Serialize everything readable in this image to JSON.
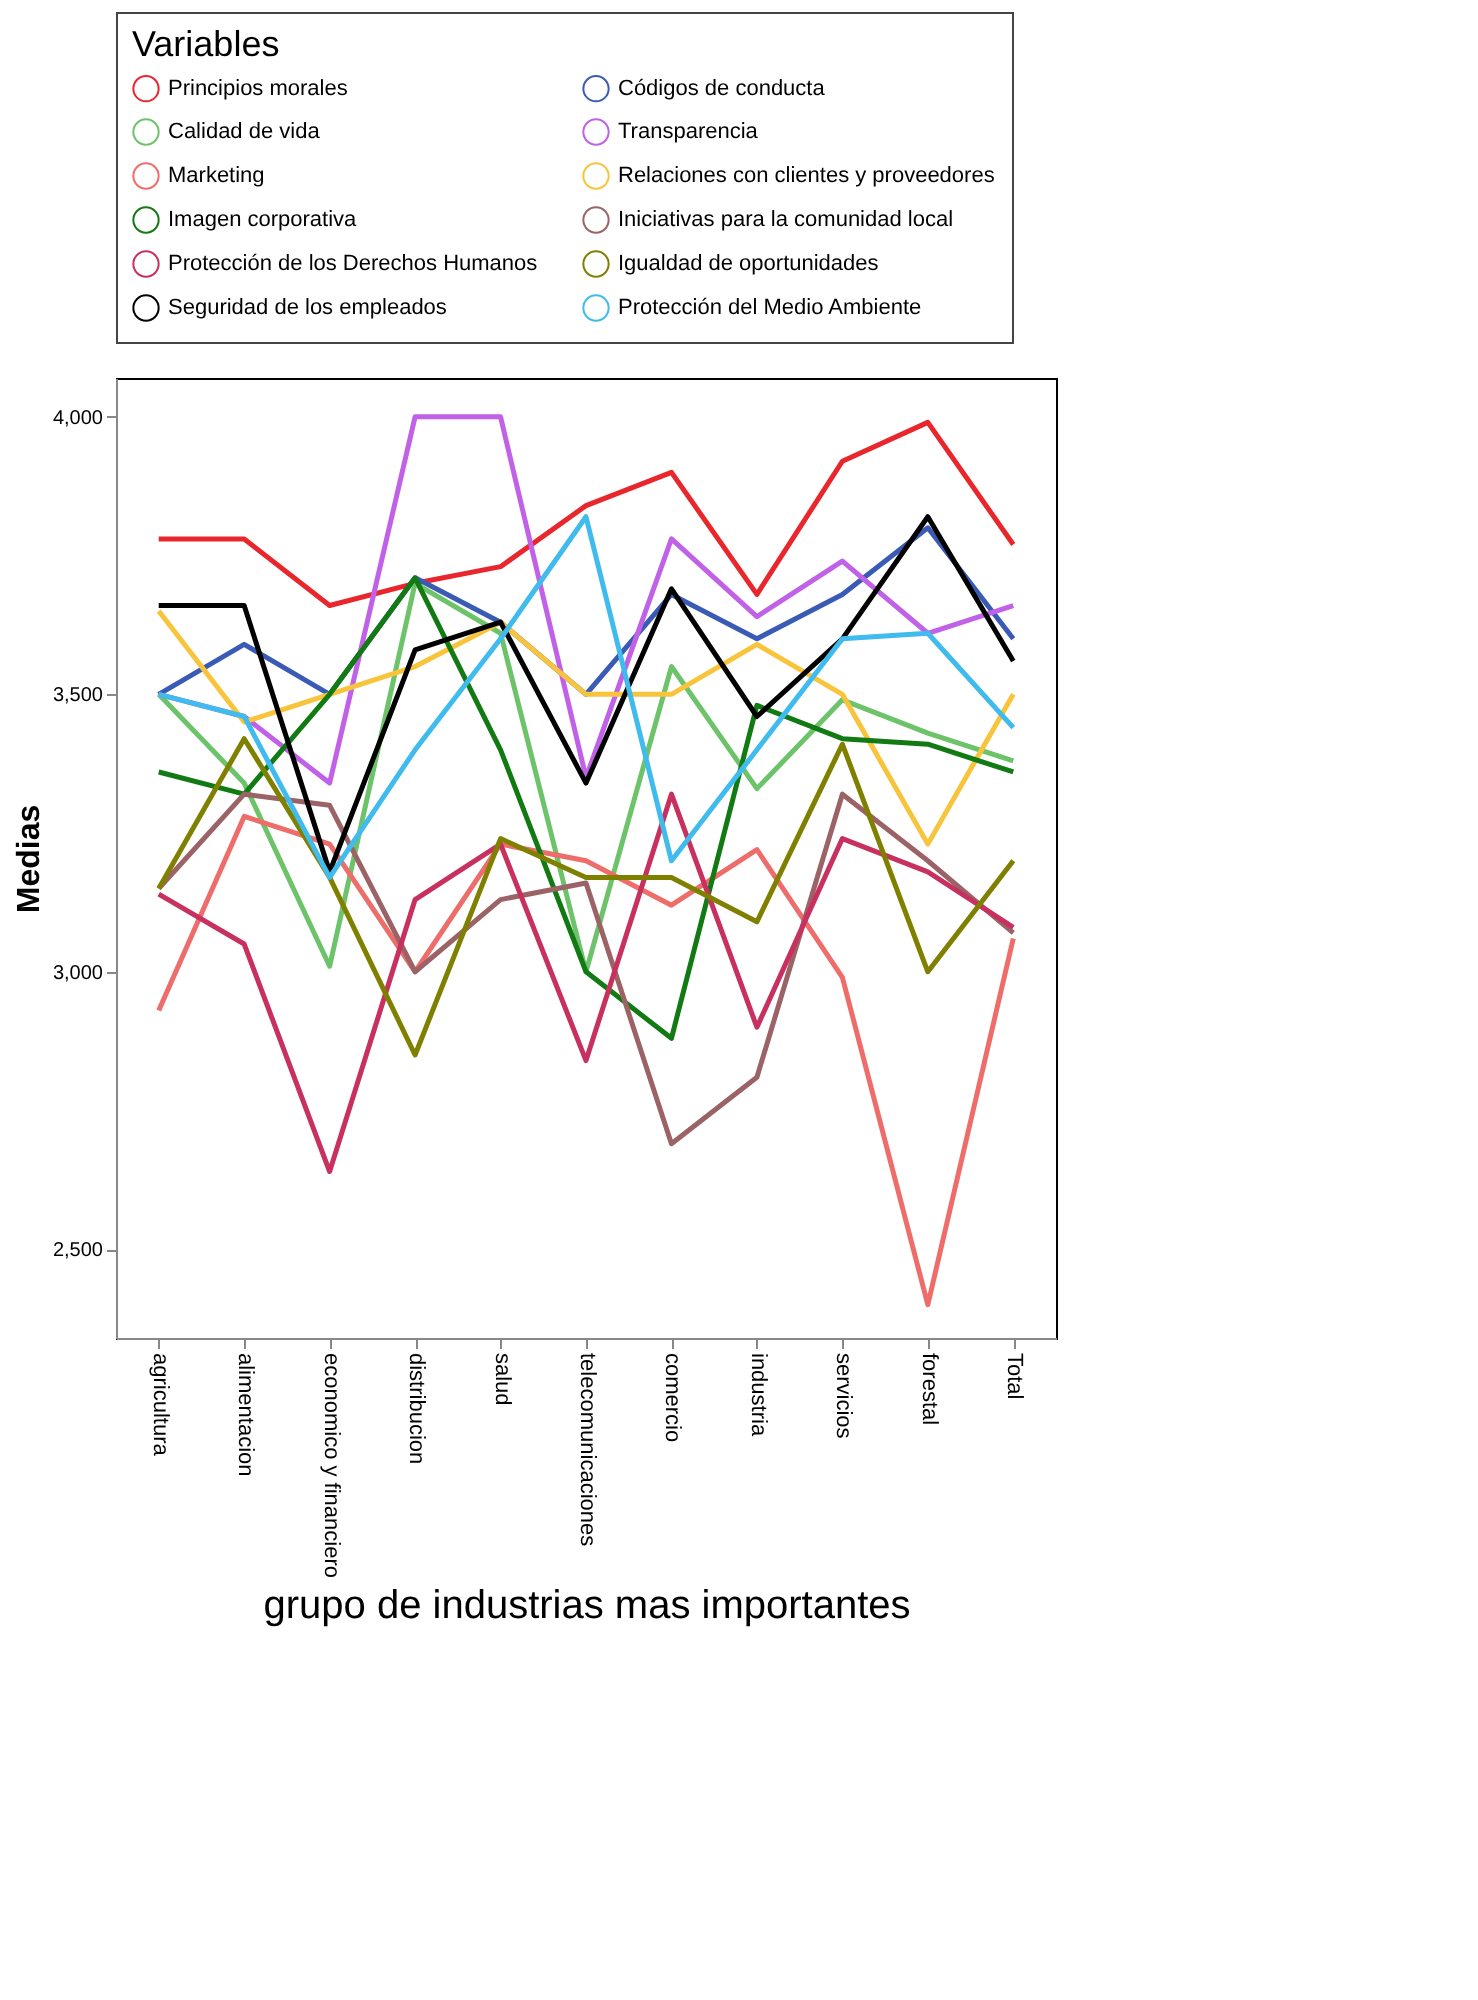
{
  "chart_data": {
    "type": "line",
    "xlabel": "grupo de industrias mas importantes",
    "ylabel": "Medias",
    "legend_title": "Variables",
    "legend": "top",
    "grid": false,
    "marker": "none",
    "line_style": "solid",
    "categories": [
      "agricultura",
      "alimentacion",
      "economico y financiero",
      "distribucion",
      "salud",
      "telecomunicaciones",
      "comercio",
      "industria",
      "servicios",
      "forestal",
      "Total"
    ],
    "ylim": [
      2340,
      4070
    ],
    "yticks": [
      {
        "value": 2500,
        "label": "2,500"
      },
      {
        "value": 3000,
        "label": "3,000"
      },
      {
        "value": 3500,
        "label": "3,500"
      },
      {
        "value": 4000,
        "label": "4,000"
      }
    ],
    "series": [
      {
        "name": "Principios morales",
        "color": "#e8262b",
        "values": [
          3780,
          3780,
          3660,
          3700,
          3730,
          3840,
          3900,
          3680,
          3920,
          3990,
          3770
        ]
      },
      {
        "name": "Códigos de conducta",
        "color": "#3a5bb5",
        "values": [
          3500,
          3590,
          3500,
          3710,
          3630,
          3500,
          3680,
          3600,
          3680,
          3800,
          3600
        ]
      },
      {
        "name": "Calidad de vida",
        "color": "#6cc36a",
        "values": [
          3500,
          3340,
          3010,
          3700,
          3610,
          3000,
          3550,
          3330,
          3490,
          3430,
          3380
        ]
      },
      {
        "name": "Transparencia",
        "color": "#c061e8",
        "values": [
          3500,
          3460,
          3340,
          4000,
          4000,
          3350,
          3780,
          3640,
          3740,
          3610,
          3660
        ]
      },
      {
        "name": "Marketing",
        "color": "#ee6d6a",
        "values": [
          2930,
          3280,
          3230,
          3000,
          3230,
          3200,
          3120,
          3220,
          2990,
          2400,
          3060
        ]
      },
      {
        "name": "Relaciones con clientes y proveedores",
        "color": "#f7c43c",
        "values": [
          3650,
          3450,
          3500,
          3550,
          3630,
          3500,
          3500,
          3590,
          3500,
          3230,
          3500
        ]
      },
      {
        "name": "Imagen corporativa",
        "color": "#127a12",
        "values": [
          3360,
          3320,
          3500,
          3710,
          3400,
          3000,
          2880,
          3480,
          3420,
          3410,
          3360
        ]
      },
      {
        "name": "Iniciativas para la comunidad local",
        "color": "#9b6366",
        "values": [
          3150,
          3320,
          3300,
          3000,
          3130,
          3160,
          2690,
          2810,
          3320,
          3200,
          3070
        ]
      },
      {
        "name": "Protección de los Derechos Humanos",
        "color": "#c8305f",
        "values": [
          3140,
          3050,
          2640,
          3130,
          3230,
          2840,
          3320,
          2900,
          3240,
          3180,
          3080
        ]
      },
      {
        "name": "Igualdad de oportunidades",
        "color": "#808000",
        "values": [
          3150,
          3420,
          3170,
          2850,
          3240,
          3170,
          3170,
          3090,
          3410,
          3000,
          3200
        ]
      },
      {
        "name": "Seguridad de los empleados",
        "color": "#000000",
        "values": [
          3660,
          3660,
          3180,
          3580,
          3630,
          3340,
          3690,
          3460,
          3600,
          3820,
          3560
        ]
      },
      {
        "name": "Protección del Medio Ambiente",
        "color": "#3fbbee",
        "values": [
          3500,
          3460,
          3170,
          3400,
          3600,
          3820,
          3200,
          3400,
          3600,
          3610,
          3440
        ]
      }
    ]
  }
}
